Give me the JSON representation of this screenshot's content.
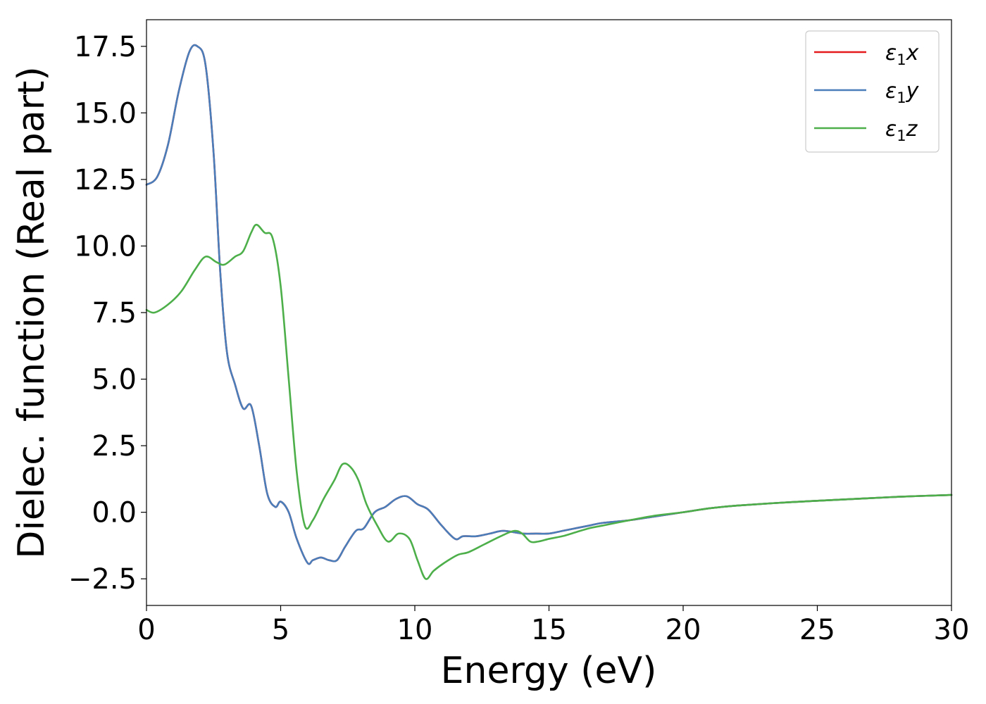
{
  "chart_data": {
    "type": "line",
    "xlabel": "Energy (eV)",
    "ylabel": "Dielec. function (Real part)",
    "xlim": [
      0,
      30
    ],
    "ylim": [
      -3.5,
      18.5
    ],
    "x_ticks": [
      0,
      5,
      10,
      15,
      20,
      25,
      30
    ],
    "x_tick_labels": [
      "0",
      "5",
      "10",
      "15",
      "20",
      "25",
      "30"
    ],
    "y_ticks": [
      -2.5,
      0.0,
      2.5,
      5.0,
      7.5,
      10.0,
      12.5,
      15.0,
      17.5
    ],
    "y_tick_labels": [
      "−2.5",
      "0.0",
      "2.5",
      "5.0",
      "7.5",
      "10.0",
      "12.5",
      "15.0",
      "17.5"
    ],
    "grid": false,
    "legend_position": "top-right",
    "series": [
      {
        "name": "ε1x",
        "legend_main": "ε",
        "legend_sub": "1",
        "legend_var": "x",
        "color": "#e41a1c",
        "x": [
          0,
          0.4,
          0.8,
          1.2,
          1.6,
          1.9,
          2.2,
          2.5,
          2.75,
          3.0,
          3.3,
          3.6,
          3.9,
          4.2,
          4.5,
          4.8,
          5.0,
          5.3,
          5.6,
          6.0,
          6.2,
          6.5,
          6.8,
          7.1,
          7.4,
          7.8,
          8.1,
          8.5,
          8.9,
          9.3,
          9.7,
          10.1,
          10.5,
          11.0,
          11.5,
          11.8,
          12.3,
          12.8,
          13.3,
          14.0,
          14.5,
          15.0,
          15.5,
          16.0,
          16.5,
          17.0,
          18.0,
          19.0,
          20.0,
          21.0,
          22.0,
          24.0,
          26.0,
          28.0,
          30.0
        ],
        "y": [
          12.3,
          12.6,
          13.8,
          15.8,
          17.3,
          17.5,
          16.8,
          13.5,
          9.0,
          6.0,
          4.8,
          3.9,
          4.0,
          2.5,
          0.7,
          0.2,
          0.4,
          0.0,
          -1.0,
          -1.9,
          -1.8,
          -1.7,
          -1.8,
          -1.8,
          -1.3,
          -0.7,
          -0.6,
          0.0,
          0.2,
          0.5,
          0.6,
          0.3,
          0.1,
          -0.5,
          -1.0,
          -0.9,
          -0.9,
          -0.8,
          -0.7,
          -0.8,
          -0.8,
          -0.8,
          -0.7,
          -0.6,
          -0.5,
          -0.4,
          -0.3,
          -0.15,
          0.0,
          0.15,
          0.25,
          0.38,
          0.48,
          0.58,
          0.65
        ]
      },
      {
        "name": "ε1y",
        "legend_main": "ε",
        "legend_sub": "1",
        "legend_var": "y",
        "color": "#4a7eba",
        "x": [
          0,
          0.4,
          0.8,
          1.2,
          1.6,
          1.9,
          2.2,
          2.5,
          2.75,
          3.0,
          3.3,
          3.6,
          3.9,
          4.2,
          4.5,
          4.8,
          5.0,
          5.3,
          5.6,
          6.0,
          6.2,
          6.5,
          6.8,
          7.1,
          7.4,
          7.8,
          8.1,
          8.5,
          8.9,
          9.3,
          9.7,
          10.1,
          10.5,
          11.0,
          11.5,
          11.8,
          12.3,
          12.8,
          13.3,
          14.0,
          14.5,
          15.0,
          15.5,
          16.0,
          16.5,
          17.0,
          18.0,
          19.0,
          20.0,
          21.0,
          22.0,
          24.0,
          26.0,
          28.0,
          30.0
        ],
        "y": [
          12.3,
          12.6,
          13.8,
          15.8,
          17.3,
          17.5,
          16.8,
          13.5,
          9.0,
          6.0,
          4.8,
          3.9,
          4.0,
          2.5,
          0.7,
          0.2,
          0.4,
          0.0,
          -1.0,
          -1.9,
          -1.8,
          -1.7,
          -1.8,
          -1.8,
          -1.3,
          -0.7,
          -0.6,
          0.0,
          0.2,
          0.5,
          0.6,
          0.3,
          0.1,
          -0.5,
          -1.0,
          -0.9,
          -0.9,
          -0.8,
          -0.7,
          -0.8,
          -0.8,
          -0.8,
          -0.7,
          -0.6,
          -0.5,
          -0.4,
          -0.3,
          -0.15,
          0.0,
          0.15,
          0.25,
          0.38,
          0.48,
          0.58,
          0.65
        ]
      },
      {
        "name": "ε1z",
        "legend_main": "ε",
        "legend_sub": "1",
        "legend_var": "z",
        "color": "#4daf4a",
        "x": [
          0,
          0.3,
          0.8,
          1.3,
          1.8,
          2.2,
          2.6,
          2.9,
          3.3,
          3.6,
          3.9,
          4.1,
          4.4,
          4.7,
          5.0,
          5.3,
          5.6,
          5.9,
          6.2,
          6.6,
          7.0,
          7.3,
          7.6,
          7.9,
          8.2,
          8.6,
          9.0,
          9.4,
          9.8,
          10.1,
          10.4,
          10.7,
          11.1,
          11.6,
          12.0,
          12.6,
          13.2,
          13.7,
          14.0,
          14.3,
          14.6,
          15.0,
          15.5,
          16.0,
          16.5,
          17.0,
          18.0,
          19.0,
          20.0,
          21.0,
          22.0,
          24.0,
          26.0,
          28.0,
          30.0
        ],
        "y": [
          7.6,
          7.5,
          7.8,
          8.3,
          9.1,
          9.6,
          9.4,
          9.3,
          9.6,
          9.8,
          10.5,
          10.8,
          10.5,
          10.3,
          8.5,
          5.0,
          1.5,
          -0.5,
          -0.3,
          0.5,
          1.2,
          1.8,
          1.7,
          1.2,
          0.3,
          -0.5,
          -1.1,
          -0.8,
          -1.0,
          -1.8,
          -2.5,
          -2.2,
          -1.9,
          -1.6,
          -1.5,
          -1.2,
          -0.9,
          -0.7,
          -0.8,
          -1.1,
          -1.1,
          -1.0,
          -0.9,
          -0.75,
          -0.6,
          -0.5,
          -0.3,
          -0.12,
          0.0,
          0.15,
          0.25,
          0.38,
          0.48,
          0.58,
          0.65
        ]
      }
    ]
  }
}
